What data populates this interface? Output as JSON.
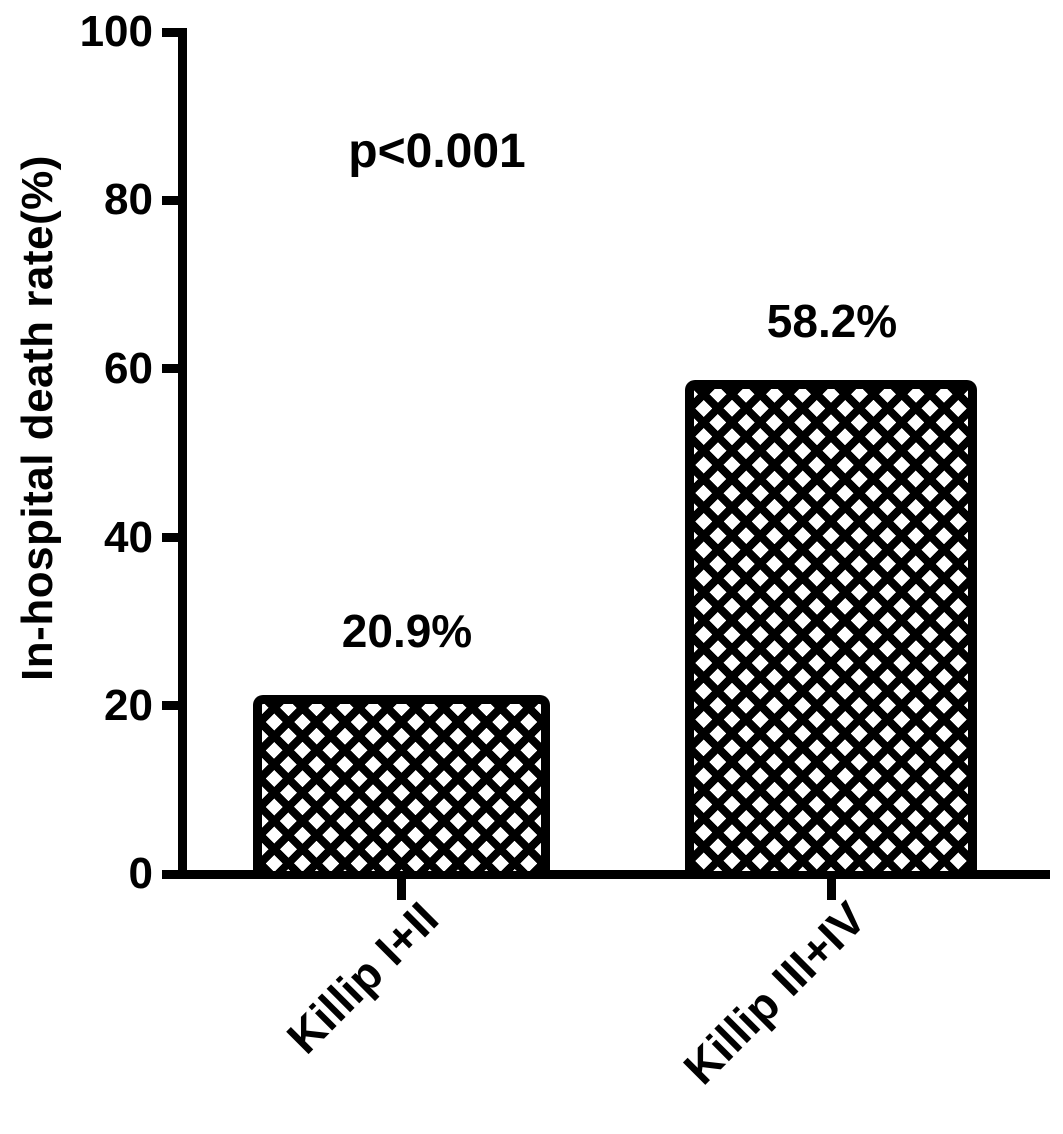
{
  "chart_data": {
    "type": "bar",
    "title": "",
    "xlabel": "",
    "ylabel": "In-hospital death rate(%)",
    "ylim": [
      0,
      100
    ],
    "yticks": [
      0,
      20,
      40,
      60,
      80,
      100
    ],
    "ytick_labels_top_to_bottom": [
      "100",
      "80",
      "60",
      "40",
      "20",
      "0"
    ],
    "categories": [
      "Killip I+II",
      "Killip III+IV"
    ],
    "values": [
      20.9,
      58.2
    ],
    "value_labels": [
      "20.9%",
      "58.2%"
    ],
    "annotation": "p<0.001",
    "legend": null,
    "grid": false,
    "bar_fill_style": "diamond-crosshatch",
    "colors": {
      "foreground": "#000000",
      "background": "#ffffff"
    }
  }
}
